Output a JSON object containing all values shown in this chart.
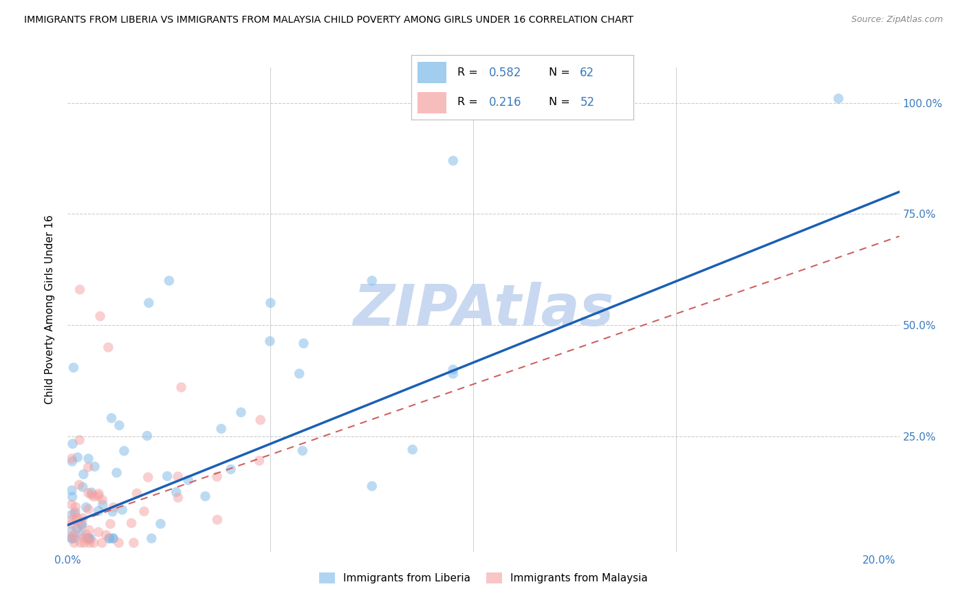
{
  "title": "IMMIGRANTS FROM LIBERIA VS IMMIGRANTS FROM MALAYSIA CHILD POVERTY AMONG GIRLS UNDER 16 CORRELATION CHART",
  "source": "Source: ZipAtlas.com",
  "ylabel": "Child Poverty Among Girls Under 16",
  "xlim": [
    0.0,
    0.205
  ],
  "ylim": [
    -0.01,
    1.08
  ],
  "color_liberia": "#7ab8e8",
  "color_malaysia": "#f4a0a0",
  "R_liberia": 0.582,
  "N_liberia": 62,
  "R_malaysia": 0.216,
  "N_malaysia": 52,
  "line_color_liberia": "#1a5fb4",
  "line_color_malaysia": "#d06060",
  "watermark": "ZIPAtlas",
  "watermark_color": "#c8d8f0",
  "background_color": "#ffffff",
  "grid_color": "#cccccc",
  "tick_color": "#3a7abf",
  "line_y0_liberia": 0.05,
  "line_y1_liberia": 0.8,
  "line_y0_malaysia": 0.05,
  "line_y1_malaysia": 0.7
}
